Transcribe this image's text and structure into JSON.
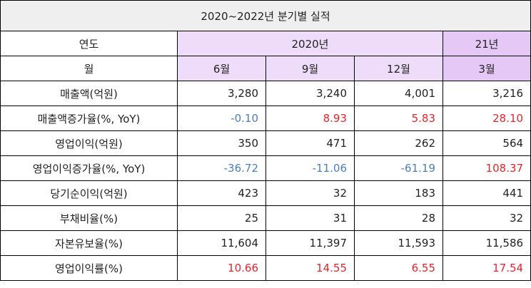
{
  "title": "2020~2022년 분기별 실적",
  "header": {
    "year_label": "연도",
    "month_label": "월",
    "year_2020": "2020년",
    "year_21": "21년",
    "months": [
      "6월",
      "9월",
      "12월",
      "3월"
    ]
  },
  "rows": [
    {
      "label": "매출액(억원)",
      "values": [
        "3,280",
        "3,240",
        "4,001",
        "3,216"
      ],
      "styles": [
        "plain",
        "plain",
        "plain",
        "plain"
      ]
    },
    {
      "label": "매출액증가율(%, YoY)",
      "values": [
        "-0.10",
        "8.93",
        "5.83",
        "28.10"
      ],
      "styles": [
        "neg",
        "pos",
        "pos",
        "pos"
      ]
    },
    {
      "label": "영업이익(억원)",
      "values": [
        "350",
        "471",
        "262",
        "564"
      ],
      "styles": [
        "plain",
        "plain",
        "plain",
        "plain"
      ]
    },
    {
      "label": "영업이익증가율(%, YoY)",
      "values": [
        "-36.72",
        "-11.06",
        "-61.19",
        "108.37"
      ],
      "styles": [
        "neg",
        "neg",
        "neg",
        "pos"
      ]
    },
    {
      "label": "당기순이익(억원)",
      "values": [
        "423",
        "32",
        "183",
        "441"
      ],
      "styles": [
        "plain",
        "plain",
        "plain",
        "plain"
      ]
    },
    {
      "label": "부채비율(%)",
      "values": [
        "25",
        "31",
        "28",
        "32"
      ],
      "styles": [
        "plain",
        "plain",
        "plain",
        "plain"
      ]
    },
    {
      "label": "자본유보율(%)",
      "values": [
        "11,604",
        "11,397",
        "11,593",
        "11,586"
      ],
      "styles": [
        "plain",
        "plain",
        "plain",
        "plain"
      ]
    },
    {
      "label": "영업이익률(%)",
      "values": [
        "10.66",
        "14.55",
        "6.55",
        "17.54"
      ],
      "styles": [
        "pos",
        "pos",
        "pos",
        "pos"
      ]
    }
  ],
  "colors": {
    "negative": "#4a7ebb",
    "positive": "#e8232a",
    "header_purple": "#efdcfa",
    "header_purple_dark": "#e5c8f5",
    "title_bg": "#efefef"
  }
}
